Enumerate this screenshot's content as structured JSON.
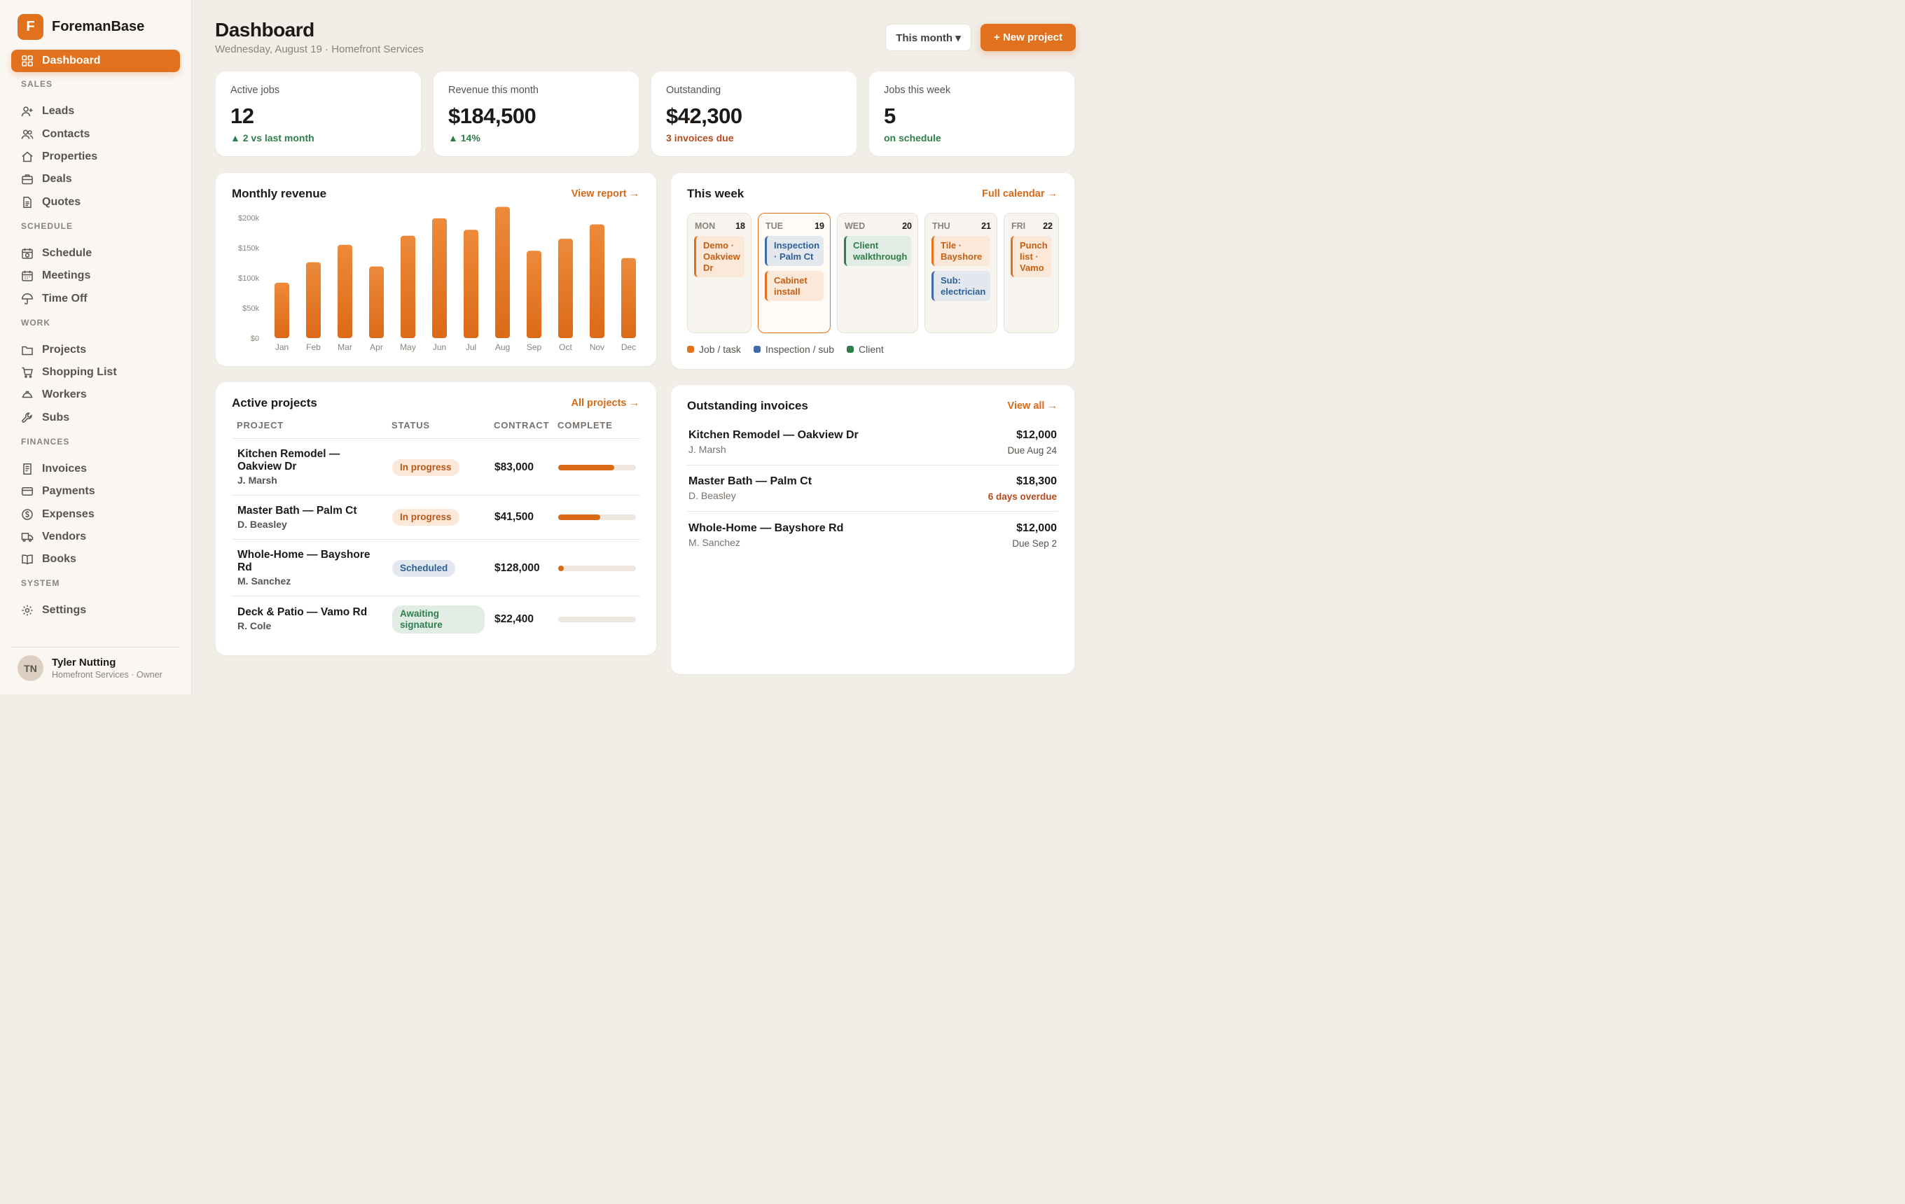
{
  "brand": {
    "logo_letter": "F",
    "name": "ForemanBase"
  },
  "nav": {
    "dashboard": "Dashboard",
    "sections": {
      "sales": "SALES",
      "schedule": "SCHEDULE",
      "work": "WORK",
      "finances": "FINANCES",
      "system": "SYSTEM"
    },
    "items": {
      "leads": "Leads",
      "contacts": "Contacts",
      "properties": "Properties",
      "deals": "Deals",
      "quotes": "Quotes",
      "schedule": "Schedule",
      "meetings": "Meetings",
      "timeoff": "Time Off",
      "projects": "Projects",
      "shopping": "Shopping List",
      "workers": "Workers",
      "subs": "Subs",
      "invoices": "Invoices",
      "payments": "Payments",
      "expenses": "Expenses",
      "vendors": "Vendors",
      "books": "Books",
      "settings": "Settings"
    }
  },
  "user": {
    "initials": "TN",
    "name": "Tyler Nutting",
    "role": "Homefront Services · Owner"
  },
  "header": {
    "title": "Dashboard",
    "subtitle": "Wednesday, August 19 · Homefront Services",
    "period": "This month ▾",
    "new_project": "+ New project"
  },
  "stats": [
    {
      "label": "Active jobs",
      "value": "12",
      "note": "▲ 2 vs last month"
    },
    {
      "label": "Revenue this month",
      "value": "$184,500",
      "note": "▲ 14%"
    },
    {
      "label": "Outstanding",
      "value": "$42,300",
      "note": "3 invoices due"
    },
    {
      "label": "Jobs this week",
      "value": "5",
      "note": "on schedule"
    }
  ],
  "revenue": {
    "title": "Monthly revenue",
    "link": "View report →"
  },
  "chart_data": {
    "type": "bar",
    "categories": [
      "Jan",
      "Feb",
      "Mar",
      "Apr",
      "May",
      "Jun",
      "Jul",
      "Aug",
      "Sep",
      "Oct",
      "Nov",
      "Dec"
    ],
    "values": [
      92000,
      126000,
      155000,
      119000,
      170000,
      199000,
      180000,
      218000,
      145000,
      165000,
      189000,
      133000
    ],
    "ylim": [
      0,
      200000
    ],
    "yticks": [
      "$0",
      "$50k",
      "$100k",
      "$150k",
      "$200k"
    ],
    "grid": false,
    "color": "#e2711d"
  },
  "week": {
    "title": "This week",
    "link": "Full calendar →",
    "days": [
      {
        "d": "MON",
        "n": "18",
        "events": [
          {
            "t": "Demo · Oakview Dr",
            "k": "job"
          }
        ]
      },
      {
        "d": "TUE",
        "n": "19",
        "events": [
          {
            "t": "Inspection · Palm Ct",
            "k": "insp"
          },
          {
            "t": "Cabinet install",
            "k": "job"
          }
        ]
      },
      {
        "d": "WED",
        "n": "20",
        "events": [
          {
            "t": "Client walkthrough",
            "k": "client"
          }
        ]
      },
      {
        "d": "THU",
        "n": "21",
        "events": [
          {
            "t": "Tile · Bayshore",
            "k": "job"
          },
          {
            "t": "Sub: electrician",
            "k": "insp"
          }
        ]
      },
      {
        "d": "FRI",
        "n": "22",
        "events": [
          {
            "t": "Punch list · Vamo",
            "k": "job"
          }
        ]
      }
    ],
    "legend": {
      "job": "Job / task",
      "insp": "Inspection / sub",
      "client": "Client"
    },
    "colors": {
      "job": "#e2711d",
      "insp": "#3d6ca8",
      "client": "#2f7d4a"
    }
  },
  "projects": {
    "title": "Active projects",
    "link": "All projects →",
    "headers": {
      "project": "PROJECT",
      "status": "STATUS",
      "contract": "CONTRACT",
      "complete": "COMPLETE"
    },
    "rows": [
      {
        "name": "Kitchen Remodel — Oakview Dr",
        "client": "J. Marsh",
        "status": "In progress",
        "contract": "$83,000",
        "complete": 0.72
      },
      {
        "name": "Master Bath — Palm Ct",
        "client": "D. Beasley",
        "status": "In progress",
        "contract": "$41,500",
        "complete": 0.54
      },
      {
        "name": "Whole-Home — Bayshore Rd",
        "client": "M. Sanchez",
        "status": "Scheduled",
        "contract": "$128,000",
        "complete": 0.07
      },
      {
        "name": "Deck & Patio — Vamo Rd",
        "client": "R. Cole",
        "status": "Awaiting signature",
        "contract": "$22,400",
        "complete": 0
      }
    ]
  },
  "invoices": {
    "title": "Outstanding invoices",
    "link": "View all →",
    "rows": [
      {
        "name": "Kitchen Remodel — Oakview Dr",
        "client": "J. Marsh",
        "amount": "$12,000",
        "due": "Due Aug 24"
      },
      {
        "name": "Master Bath — Palm Ct",
        "client": "D. Beasley",
        "amount": "$18,300",
        "due": "6 days overdue"
      },
      {
        "name": "Whole-Home — Bayshore Rd",
        "client": "M. Sanchez",
        "amount": "$12,000",
        "due": "Due Sep 2"
      }
    ]
  }
}
